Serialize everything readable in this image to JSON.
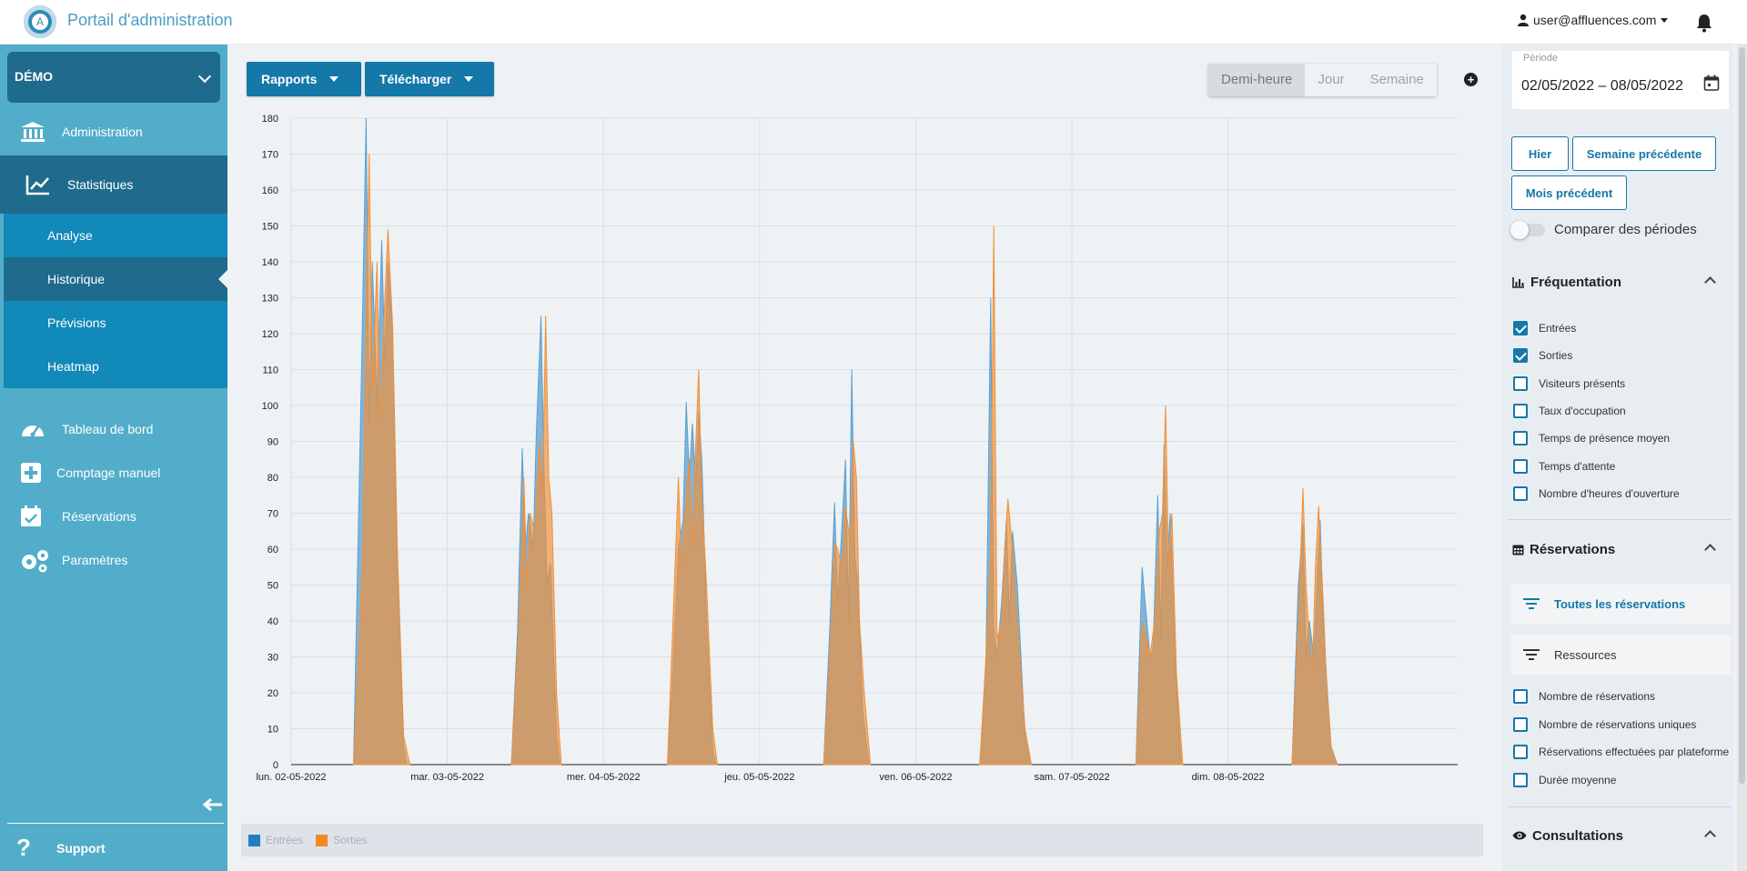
{
  "header": {
    "title": "Portail d'administration",
    "user": "user@affluences.com"
  },
  "sidebar": {
    "site": "DÉMO",
    "items": [
      {
        "label": "Administration"
      },
      {
        "label": "Statistiques"
      },
      {
        "label": "Tableau de bord"
      },
      {
        "label": "Comptage manuel"
      },
      {
        "label": "Réservations"
      },
      {
        "label": "Paramètres"
      }
    ],
    "subitems": [
      {
        "label": "Analyse"
      },
      {
        "label": "Historique"
      },
      {
        "label": "Prévisions"
      },
      {
        "label": "Heatmap"
      }
    ],
    "support": "Support"
  },
  "toolbar": {
    "reports": "Rapports",
    "download": "Télécharger",
    "granularity": [
      "Demi-heure",
      "Jour",
      "Semaine"
    ],
    "selected_granularity": "Demi-heure"
  },
  "right_panel": {
    "period_label": "Période",
    "period_value": "02/05/2022 – 08/05/2022",
    "quick": [
      "Hier",
      "Semaine précédente",
      "Mois précédent"
    ],
    "compare": "Comparer des périodes",
    "frequentation_title": "Fréquentation",
    "frequentation_items": [
      {
        "label": "Entrées",
        "checked": true
      },
      {
        "label": "Sorties",
        "checked": true
      },
      {
        "label": "Visiteurs présents",
        "checked": false
      },
      {
        "label": "Taux d'occupation",
        "checked": false
      },
      {
        "label": "Temps de présence moyen",
        "checked": false
      },
      {
        "label": "Temps d'attente",
        "checked": false
      },
      {
        "label": "Nombre d'heures d'ouverture",
        "checked": false
      }
    ],
    "reservations_title": "Réservations",
    "reservation_tiles": [
      "Toutes les réservations",
      "Ressources"
    ],
    "reservation_items": [
      {
        "label": "Nombre de réservations",
        "checked": false
      },
      {
        "label": "Nombre de réservations uniques",
        "checked": false
      },
      {
        "label": "Réservations effectuées par plateforme",
        "checked": false
      },
      {
        "label": "Durée moyenne",
        "checked": false
      }
    ],
    "consultations_title": "Consultations"
  },
  "colors": {
    "entrees": "#5b9fd0",
    "sorties": "#f0903a",
    "accent": "#1478a8"
  },
  "chart_data": {
    "type": "area",
    "x_ticks": [
      "lun. 02-05-2022",
      "mar. 03-05-2022",
      "mer. 04-05-2022",
      "jeu. 05-05-2022",
      "ven. 06-05-2022",
      "sam. 07-05-2022",
      "dim. 08-05-2022"
    ],
    "y_ticks": [
      0,
      10,
      20,
      30,
      40,
      50,
      60,
      70,
      80,
      90,
      100,
      110,
      120,
      130,
      140,
      150,
      160,
      170,
      180
    ],
    "ylim": [
      0,
      180
    ],
    "xlim_days": [
      0,
      7
    ],
    "grid": true,
    "legend_position": "bottom",
    "series": [
      {
        "name": "Entrées",
        "color": "#5b9fd0",
        "points": [
          [
            0.4,
            0
          ],
          [
            0.45,
            108
          ],
          [
            0.48,
            180
          ],
          [
            0.5,
            95
          ],
          [
            0.52,
            140
          ],
          [
            0.55,
            100
          ],
          [
            0.58,
            146
          ],
          [
            0.6,
            112
          ],
          [
            0.62,
            140
          ],
          [
            0.65,
            120
          ],
          [
            0.68,
            55
          ],
          [
            0.72,
            5
          ],
          [
            0.74,
            0
          ],
          [
            1.41,
            0
          ],
          [
            1.45,
            37
          ],
          [
            1.48,
            88
          ],
          [
            1.5,
            60
          ],
          [
            1.52,
            70
          ],
          [
            1.55,
            60
          ],
          [
            1.57,
            92
          ],
          [
            1.6,
            125
          ],
          [
            1.62,
            80
          ],
          [
            1.64,
            50
          ],
          [
            1.66,
            56
          ],
          [
            1.7,
            8
          ],
          [
            1.72,
            0
          ],
          [
            2.41,
            0
          ],
          [
            2.45,
            30
          ],
          [
            2.48,
            60
          ],
          [
            2.51,
            68
          ],
          [
            2.53,
            101
          ],
          [
            2.55,
            80
          ],
          [
            2.57,
            95
          ],
          [
            2.59,
            78
          ],
          [
            2.61,
            98
          ],
          [
            2.63,
            85
          ],
          [
            2.66,
            40
          ],
          [
            2.7,
            4
          ],
          [
            2.72,
            0
          ],
          [
            3.41,
            0
          ],
          [
            3.45,
            38
          ],
          [
            3.48,
            73
          ],
          [
            3.5,
            45
          ],
          [
            3.52,
            60
          ],
          [
            3.55,
            85
          ],
          [
            3.57,
            40
          ],
          [
            3.59,
            110
          ],
          [
            3.61,
            58
          ],
          [
            3.63,
            50
          ],
          [
            3.66,
            15
          ],
          [
            3.7,
            0
          ],
          [
            4.41,
            0
          ],
          [
            4.45,
            28
          ],
          [
            4.48,
            130
          ],
          [
            4.5,
            38
          ],
          [
            4.52,
            30
          ],
          [
            4.55,
            45
          ],
          [
            4.58,
            68
          ],
          [
            4.6,
            40
          ],
          [
            4.62,
            65
          ],
          [
            4.65,
            50
          ],
          [
            4.7,
            8
          ],
          [
            4.74,
            0
          ],
          [
            5.41,
            0
          ],
          [
            5.45,
            55
          ],
          [
            5.48,
            40
          ],
          [
            5.5,
            30
          ],
          [
            5.52,
            32
          ],
          [
            5.55,
            75
          ],
          [
            5.57,
            35
          ],
          [
            5.59,
            89
          ],
          [
            5.61,
            55
          ],
          [
            5.63,
            70
          ],
          [
            5.66,
            30
          ],
          [
            5.7,
            0
          ],
          [
            6.41,
            0
          ],
          [
            6.45,
            50
          ],
          [
            6.48,
            67
          ],
          [
            6.5,
            30
          ],
          [
            6.52,
            40
          ],
          [
            6.55,
            30
          ],
          [
            6.57,
            50
          ],
          [
            6.59,
            68
          ],
          [
            6.61,
            40
          ],
          [
            6.63,
            25
          ],
          [
            6.66,
            5
          ],
          [
            6.7,
            0
          ]
        ]
      },
      {
        "name": "Sorties",
        "color": "#f0903a",
        "points": [
          [
            0.4,
            0
          ],
          [
            0.46,
            60
          ],
          [
            0.48,
            130
          ],
          [
            0.5,
            170
          ],
          [
            0.52,
            105
          ],
          [
            0.55,
            140
          ],
          [
            0.57,
            95
          ],
          [
            0.6,
            130
          ],
          [
            0.62,
            149
          ],
          [
            0.65,
            122
          ],
          [
            0.68,
            60
          ],
          [
            0.72,
            8
          ],
          [
            0.76,
            0
          ],
          [
            1.41,
            0
          ],
          [
            1.46,
            40
          ],
          [
            1.49,
            80
          ],
          [
            1.51,
            50
          ],
          [
            1.53,
            70
          ],
          [
            1.56,
            65
          ],
          [
            1.59,
            90
          ],
          [
            1.61,
            75
          ],
          [
            1.63,
            125
          ],
          [
            1.65,
            80
          ],
          [
            1.67,
            70
          ],
          [
            1.7,
            20
          ],
          [
            1.73,
            0
          ],
          [
            2.41,
            0
          ],
          [
            2.45,
            45
          ],
          [
            2.48,
            80
          ],
          [
            2.5,
            55
          ],
          [
            2.53,
            75
          ],
          [
            2.55,
            85
          ],
          [
            2.57,
            60
          ],
          [
            2.59,
            88
          ],
          [
            2.61,
            110
          ],
          [
            2.63,
            75
          ],
          [
            2.66,
            50
          ],
          [
            2.7,
            10
          ],
          [
            2.73,
            0
          ],
          [
            3.41,
            0
          ],
          [
            3.45,
            30
          ],
          [
            3.48,
            62
          ],
          [
            3.5,
            60
          ],
          [
            3.53,
            55
          ],
          [
            3.55,
            72
          ],
          [
            3.58,
            62
          ],
          [
            3.6,
            90
          ],
          [
            3.62,
            80
          ],
          [
            3.64,
            40
          ],
          [
            3.67,
            20
          ],
          [
            3.71,
            0
          ],
          [
            4.41,
            0
          ],
          [
            4.45,
            30
          ],
          [
            4.48,
            60
          ],
          [
            4.5,
            150
          ],
          [
            4.52,
            35
          ],
          [
            4.55,
            40
          ],
          [
            4.57,
            60
          ],
          [
            4.59,
            74
          ],
          [
            4.62,
            60
          ],
          [
            4.65,
            40
          ],
          [
            4.7,
            10
          ],
          [
            4.74,
            0
          ],
          [
            5.41,
            0
          ],
          [
            5.45,
            40
          ],
          [
            5.48,
            35
          ],
          [
            5.5,
            30
          ],
          [
            5.53,
            40
          ],
          [
            5.56,
            65
          ],
          [
            5.58,
            70
          ],
          [
            5.6,
            100
          ],
          [
            5.62,
            55
          ],
          [
            5.64,
            70
          ],
          [
            5.67,
            25
          ],
          [
            5.71,
            0
          ],
          [
            6.41,
            0
          ],
          [
            6.45,
            40
          ],
          [
            6.48,
            77
          ],
          [
            6.5,
            50
          ],
          [
            6.52,
            35
          ],
          [
            6.54,
            25
          ],
          [
            6.56,
            55
          ],
          [
            6.58,
            72
          ],
          [
            6.61,
            45
          ],
          [
            6.63,
            24
          ],
          [
            6.66,
            5
          ],
          [
            6.7,
            0
          ]
        ]
      }
    ]
  }
}
